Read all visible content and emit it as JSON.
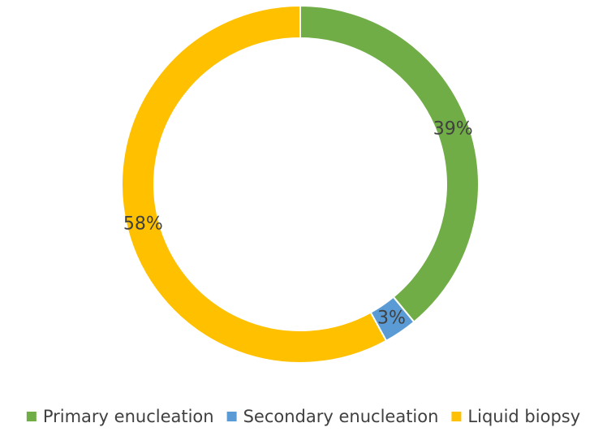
{
  "chart_data": {
    "type": "donut",
    "categories": [
      "Primary enucleation",
      "Secondary enucleation",
      "Liquid biopsy"
    ],
    "values": [
      39,
      3,
      58
    ],
    "value_labels": [
      "39%",
      "3%",
      "58%"
    ],
    "colors": [
      "#70ad47",
      "#5b9bd5",
      "#ffc000"
    ],
    "legend": "bottom"
  }
}
